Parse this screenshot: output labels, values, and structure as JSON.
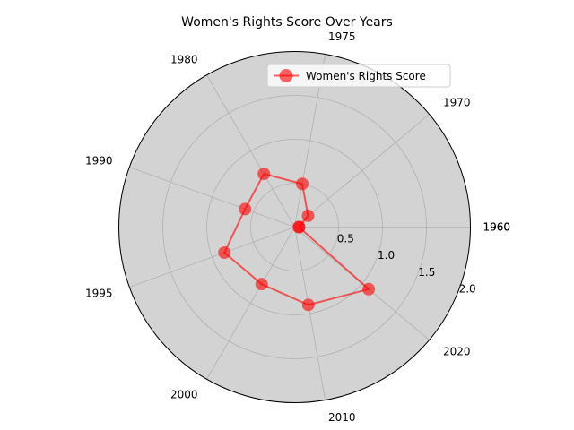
{
  "chart_data": {
    "type": "radar",
    "title": "Women's Rights Score Over Years",
    "categories": [
      "1960",
      "1970",
      "1975",
      "1980",
      "1990",
      "1995",
      "2000",
      "2010",
      "2020",
      "1960"
    ],
    "series": [
      {
        "name": "Women's Rights Score",
        "values": [
          0.05,
          0.2,
          0.5,
          0.7,
          0.6,
          0.85,
          0.75,
          0.9,
          1.1,
          0.05
        ],
        "color": "#ff0000"
      }
    ],
    "radial_ticks": [
      "0.5",
      "1.0",
      "1.5",
      "2.0"
    ],
    "rlim": [
      0,
      2.0
    ],
    "grid": true,
    "background_color": "#d3d3d3",
    "legend_position": "upper-right"
  }
}
